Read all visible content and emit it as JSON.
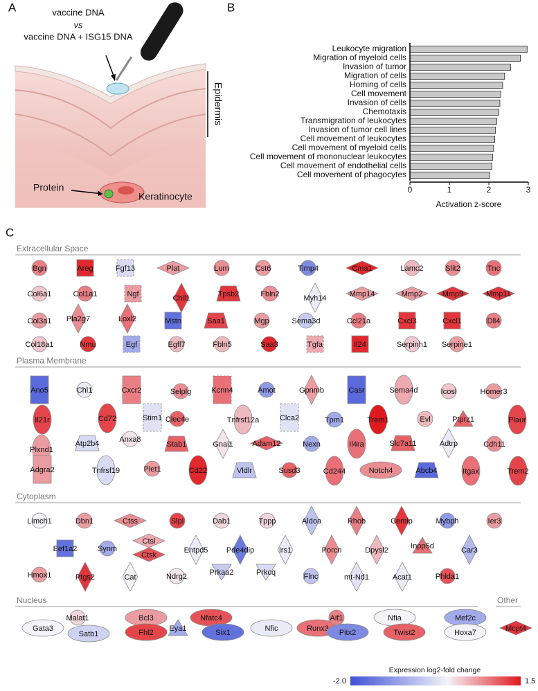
{
  "panel_labels": [
    "A",
    "B",
    "C"
  ],
  "illustration": {
    "lines": [
      "vaccine DNA",
      "vs",
      "vaccine DNA + ISG15 DNA"
    ],
    "layer": "Epidermis",
    "protein": "Protein",
    "cell": "Keratinocyte"
  },
  "chart_data": {
    "type": "bar",
    "orientation": "horizontal",
    "color": "#c8c8c8",
    "categories": [
      "Leukocyte migration",
      "Migration of myeloid cells",
      "Invasion of tumor",
      "Migration of cells",
      "Homing of cells",
      "Cell movement",
      "Invasion of cells",
      "Chemotaxis",
      "Transmigration of leukocytes",
      "Invasion of tumor cell lines",
      "Cell movement of leukocytes",
      "Cell movement of myeloid cells",
      "Cell movement of mononuclear leukocytes",
      "Cell movement of endothelial cells",
      "Cell movement of phagocytes"
    ],
    "values": [
      2.97,
      2.8,
      2.55,
      2.4,
      2.35,
      2.3,
      2.28,
      2.25,
      2.2,
      2.17,
      2.15,
      2.12,
      2.1,
      2.08,
      2.02
    ],
    "xlim": [
      0,
      3
    ],
    "xticks": [
      0,
      1,
      2,
      3
    ],
    "xlabel": "Activation z-score"
  },
  "network": {
    "colorbar": {
      "label": "Expression log2-fold change",
      "clim": [
        -2,
        1.5
      ],
      "ticks": [
        {
          "value": -2,
          "label": "-2.0"
        },
        1.5
      ],
      "colors": [
        "#3f51d6",
        "#f3f3f8",
        "#e0191f"
      ]
    },
    "sections": [
      {
        "name": "Extracellular Space",
        "nodes": [
          {
            "label": "Bgn",
            "shape": "circle",
            "value": 0.8
          },
          {
            "label": "Areg",
            "shape": "square",
            "value": 1.4
          },
          {
            "label": "Fgf13",
            "shape": "square",
            "dashed": true,
            "value": -0.3
          },
          {
            "label": "Plat",
            "shape": "hdiamond",
            "value": 0.6
          },
          {
            "label": "Lum",
            "shape": "circle",
            "value": 0.7
          },
          {
            "label": "Cst6",
            "shape": "circle",
            "value": 0.6
          },
          {
            "label": "Timp4",
            "shape": "circle",
            "value": -1.3
          },
          {
            "label": "Cma1",
            "shape": "hdiamond",
            "value": 1.4
          },
          {
            "label": "Lamc2",
            "shape": "circle",
            "value": 0.4
          },
          {
            "label": "Slit2",
            "shape": "circle",
            "value": 0.7
          },
          {
            "label": "Tnc",
            "shape": "circle",
            "value": 0.9
          },
          {
            "label": "Col6a1",
            "shape": "circle",
            "value": 0.3
          },
          {
            "label": "Col1a1",
            "shape": "circle",
            "value": 0.8
          },
          {
            "label": "Ngf",
            "shape": "square",
            "dashed": true,
            "value": 0.6
          },
          {
            "label": "Chil1",
            "shape": "vdiamond",
            "value": 1.3
          },
          {
            "label": "Tpsb2",
            "shape": "trapezoid",
            "value": 1.3
          },
          {
            "label": "Fbln2",
            "shape": "circle",
            "value": 0.7
          },
          {
            "label": "Myh14",
            "shape": "vdiamond",
            "value": -0.1
          },
          {
            "label": "Mmp14",
            "shape": "hdiamond",
            "value": 0.6
          },
          {
            "label": "Mmp2",
            "shape": "hdiamond",
            "value": 0.6
          },
          {
            "label": "Mmp9",
            "shape": "hdiamond",
            "value": 1.3
          },
          {
            "label": "Mmp11",
            "shape": "hdiamond",
            "value": 1.3
          },
          {
            "label": "Col3a1",
            "shape": "circle",
            "value": 0.6
          },
          {
            "label": "Pla2g7",
            "shape": "vdiamond",
            "value": 0.7
          },
          {
            "label": "Loxl2",
            "shape": "vdiamond",
            "value": 0.9
          },
          {
            "label": "Mstn",
            "shape": "square",
            "value": -1.6
          },
          {
            "label": "Saa1",
            "shape": "trapezoid",
            "value": 1.2
          },
          {
            "label": "Mgp",
            "shape": "circle",
            "value": 0.6
          },
          {
            "label": "Sema3d",
            "shape": "circle",
            "value": -0.5
          },
          {
            "label": "Ccl21a",
            "shape": "circle",
            "value": 0.8
          },
          {
            "label": "Cxcl3",
            "shape": "square",
            "value": 1.3
          },
          {
            "label": "Cxcl1",
            "shape": "square",
            "value": 1.3
          },
          {
            "label": "Dll4",
            "shape": "circle",
            "value": 0.8
          },
          {
            "label": "Col18a1",
            "shape": "circle",
            "value": 0.3
          },
          {
            "label": "Nmu",
            "shape": "circle",
            "value": 1.3
          },
          {
            "label": "Egf",
            "shape": "square",
            "dashed": true,
            "value": -0.9
          },
          {
            "label": "Egfl7",
            "shape": "circle",
            "value": 0.4
          },
          {
            "label": "Fbln5",
            "shape": "circle",
            "value": 0.4
          },
          {
            "label": "Saa3",
            "shape": "circle",
            "value": 1.4
          },
          {
            "label": "Tgfa",
            "shape": "square",
            "dashed": true,
            "value": 0.5
          },
          {
            "label": "Il24",
            "shape": "square",
            "value": 1.4
          },
          {
            "label": "Serpinh1",
            "shape": "circle",
            "value": 0.3
          },
          {
            "label": "Serpine1",
            "shape": "circle",
            "value": 0.6
          }
        ]
      },
      {
        "name": "Plasma Membrane",
        "nodes": [
          {
            "label": "Ano5",
            "shape": "tallrect",
            "value": -1.7
          },
          {
            "label": "Chl1",
            "shape": "circle",
            "value": -0.1
          },
          {
            "label": "Cxcr2",
            "shape": "tallrect",
            "value": 0.8
          },
          {
            "label": "Selplg",
            "shape": "circle",
            "value": 0.7
          },
          {
            "label": "Kcnn4",
            "shape": "tallrect",
            "dashed": true,
            "value": 0.9
          },
          {
            "label": "Amot",
            "shape": "circle",
            "value": -1.1
          },
          {
            "label": "Gpnmb",
            "shape": "vdiamond",
            "value": 0.6
          },
          {
            "label": "Casr",
            "shape": "tallrect",
            "value": -1.7
          },
          {
            "label": "Sema4d",
            "shape": "vellipse",
            "value": 0.5
          },
          {
            "label": "Icosl",
            "shape": "circle",
            "value": 0.3
          },
          {
            "label": "Homer3",
            "shape": "circle",
            "value": 0.6
          },
          {
            "label": "Il21r",
            "shape": "vellipse",
            "value": 1.2
          },
          {
            "label": "Cd72",
            "shape": "vellipse",
            "value": 1.2
          },
          {
            "label": "Stim1",
            "shape": "tallrect",
            "dashed": true,
            "value": -0.2
          },
          {
            "label": "Clec4e",
            "shape": "circle",
            "value": 1.0
          },
          {
            "label": "Tnfrsf12a",
            "shape": "vellipse",
            "value": 0.4
          },
          {
            "label": "Clca2",
            "shape": "tallrect",
            "dashed": true,
            "value": -0.2
          },
          {
            "label": "Tpm1",
            "shape": "circle",
            "value": -0.9
          },
          {
            "label": "Trem1",
            "shape": "vellipse",
            "value": 1.5
          },
          {
            "label": "Evl",
            "shape": "circle",
            "value": 0.4
          },
          {
            "label": "Ptprz1",
            "shape": "triangle",
            "value": 1.0
          },
          {
            "label": "Plaur",
            "shape": "vellipse",
            "value": 1.2
          },
          {
            "label": "Plxnd1",
            "shape": "vellipse",
            "value": 0.6
          },
          {
            "label": "Atp2b4",
            "shape": "trapezoid",
            "value": -0.3
          },
          {
            "label": "Anxa8",
            "shape": "circle",
            "value": 0.1
          },
          {
            "label": "Stab1",
            "shape": "trapezoid",
            "value": 1.0
          },
          {
            "label": "Gnai1",
            "shape": "vdiamond",
            "value": 0.1
          },
          {
            "label": "Adam12",
            "shape": "hdiamond",
            "value": 1.0
          },
          {
            "label": "Nexn",
            "shape": "circle",
            "value": -0.9
          },
          {
            "label": "Il4ra",
            "shape": "vellipse",
            "value": 0.9
          },
          {
            "label": "Slc7a11",
            "shape": "trapezoid",
            "value": 1.0
          },
          {
            "label": "Adtrp",
            "shape": "vdiamond",
            "value": -0.1
          },
          {
            "label": "Cdh11",
            "shape": "circle",
            "value": 0.7
          },
          {
            "label": "Adgra2",
            "shape": "tallrect",
            "value": 0.6
          },
          {
            "label": "Tnfrsf19",
            "shape": "vellipse",
            "value": -0.3
          },
          {
            "label": "Plet1",
            "shape": "circle",
            "value": 0.6
          },
          {
            "label": "Cd22",
            "shape": "vellipse",
            "value": 1.4
          },
          {
            "label": "Vldlr",
            "shape": "trapezoid",
            "value": -0.6
          },
          {
            "label": "Susd3",
            "shape": "circle",
            "value": 1.0
          },
          {
            "label": "Cd244",
            "shape": "vellipse",
            "value": 0.9
          },
          {
            "label": "Notch4",
            "shape": "hellipse",
            "value": 0.7
          },
          {
            "label": "Abcb4",
            "shape": "trapezoid",
            "value": -1.7
          },
          {
            "label": "Itgax",
            "shape": "vellipse",
            "value": 0.9
          },
          {
            "label": "Trem2",
            "shape": "vellipse",
            "value": 1.2
          }
        ]
      },
      {
        "name": "Cytoplasm",
        "nodes": [
          {
            "label": "Limch1",
            "shape": "circle",
            "value": 0.0
          },
          {
            "label": "Dbn1",
            "shape": "circle",
            "value": 0.6
          },
          {
            "label": "Ctss",
            "shape": "hdiamond",
            "value": 0.7
          },
          {
            "label": "Slpi",
            "shape": "circle",
            "value": 1.2
          },
          {
            "label": "Dab1",
            "shape": "circle",
            "value": 0.2
          },
          {
            "label": "Tppp",
            "shape": "circle",
            "value": 0.2
          },
          {
            "label": "Aldoa",
            "shape": "vdiamond",
            "value": -0.6
          },
          {
            "label": "Rhob",
            "shape": "vdiamond",
            "value": 0.8
          },
          {
            "label": "Cemip",
            "shape": "vdiamond",
            "value": 1.3
          },
          {
            "label": "Mybph",
            "shape": "circle",
            "value": -1.1
          },
          {
            "label": "Ier3",
            "shape": "circle",
            "value": 0.6
          },
          {
            "label": "Eef1a2",
            "shape": "square",
            "value": -1.6
          },
          {
            "label": "Synm",
            "shape": "circle",
            "value": -0.9
          },
          {
            "label": "Ctsl",
            "shape": "hdiamond",
            "value": 0.5
          },
          {
            "label": "Ctsk",
            "shape": "hdiamond",
            "value": 1.1
          },
          {
            "label": "Entpd5",
            "shape": "vdiamond",
            "value": -0.1
          },
          {
            "label": "Pde4dip",
            "shape": "vdiamond",
            "value": -1.5
          },
          {
            "label": "Irs1",
            "shape": "vdiamond",
            "value": -0.1
          },
          {
            "label": "Porcn",
            "shape": "vdiamond",
            "value": 0.7
          },
          {
            "label": "Dpysl2",
            "shape": "vdiamond",
            "value": 0.4
          },
          {
            "label": "Inpp5d",
            "shape": "triangle",
            "value": 0.9
          },
          {
            "label": "Car3",
            "shape": "vdiamond",
            "value": -0.7
          },
          {
            "label": "Hmox1",
            "shape": "circle",
            "value": 0.6
          },
          {
            "label": "Ptgs2",
            "shape": "vdiamond",
            "value": 1.3
          },
          {
            "label": "Cat",
            "shape": "vdiamond",
            "value": 0.0
          },
          {
            "label": "Ndrg2",
            "shape": "circle",
            "value": 0.1
          },
          {
            "label": "Prkaa2",
            "shape": "triangledown",
            "value": -0.5
          },
          {
            "label": "Prkcq",
            "shape": "triangledown",
            "value": -0.3
          },
          {
            "label": "Flnc",
            "shape": "circle",
            "value": -0.6
          },
          {
            "label": "mt-Nd1",
            "shape": "vdiamond",
            "value": -0.2
          },
          {
            "label": "Acat1",
            "shape": "vdiamond",
            "value": -0.1
          },
          {
            "label": "Phlda1",
            "shape": "circle",
            "value": 1.1
          }
        ]
      },
      {
        "name": "Nucleus",
        "nodes": [
          {
            "label": "Gata3",
            "shape": "hellipse",
            "value": 0.0
          },
          {
            "label": "Malat1",
            "shape": "circle",
            "value": 0.2
          },
          {
            "label": "Satb1",
            "shape": "hellipse",
            "value": -0.4
          },
          {
            "label": "Bcl3",
            "shape": "hellipse",
            "value": 0.6
          },
          {
            "label": "Fhl2",
            "shape": "hellipse",
            "value": 1.2
          },
          {
            "label": "Eya1",
            "shape": "triangle",
            "value": -0.9
          },
          {
            "label": "Nfatc4",
            "shape": "hellipse",
            "value": 1.1
          },
          {
            "label": "Six1",
            "shape": "hellipse",
            "value": -1.6
          },
          {
            "label": "Nfic",
            "shape": "hellipse",
            "value": -0.1
          },
          {
            "label": "Runx3",
            "shape": "hellipse",
            "value": 0.9
          },
          {
            "label": "Aif1",
            "shape": "circle",
            "value": 0.8
          },
          {
            "label": "Pitx2",
            "shape": "hellipse",
            "value": -1.3
          },
          {
            "label": "Nfia",
            "shape": "hellipse",
            "value": 0.0
          },
          {
            "label": "Twist2",
            "shape": "hellipse",
            "value": 1.0
          },
          {
            "label": "Mef2c",
            "shape": "hellipse",
            "value": -0.9
          },
          {
            "label": "Hoxa7",
            "shape": "hellipse",
            "value": 0.0
          }
        ]
      },
      {
        "name": "Other",
        "nodes": [
          {
            "label": "Mcpt4",
            "shape": "hdiamond",
            "value": 1.3
          }
        ]
      }
    ]
  }
}
